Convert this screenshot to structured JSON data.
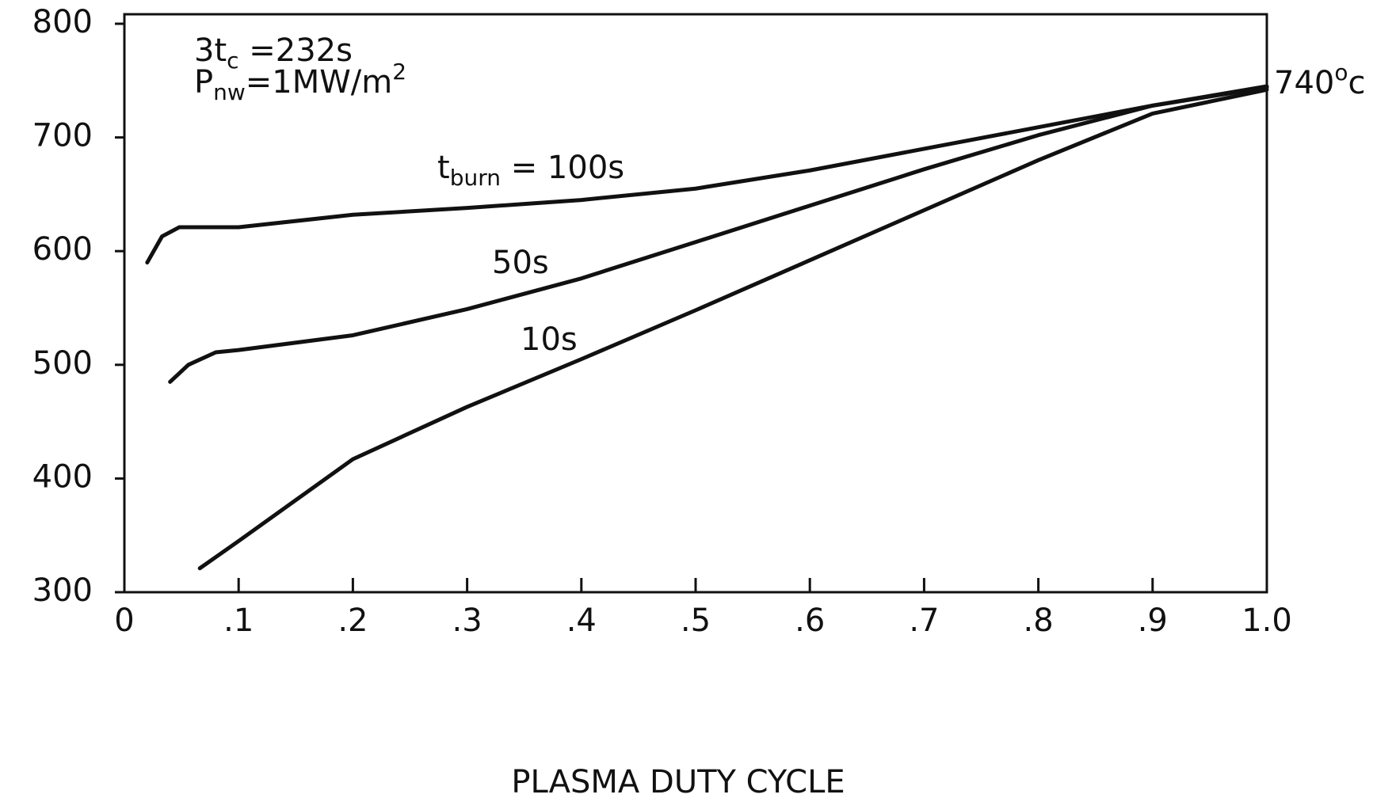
{
  "chart_data": {
    "type": "line",
    "xlabel": "PLASMA DUTY CYCLE",
    "xlim": [
      0,
      1.0
    ],
    "xticks": [
      0,
      {
        "value": 0.1,
        "label": ".1"
      },
      {
        "value": 0.2,
        "label": ".2"
      },
      {
        "value": 0.3,
        "label": ".3"
      },
      {
        "value": 0.4,
        "label": ".4"
      },
      {
        "value": 0.5,
        "label": ".5"
      },
      {
        "value": 0.6,
        "label": ".6"
      },
      {
        "value": 0.7,
        "label": ".7"
      },
      {
        "value": 0.8,
        "label": ".8"
      },
      {
        "value": 0.9,
        "label": ".9"
      },
      {
        "value": 1.0,
        "label": "1.0"
      }
    ],
    "ylim": [
      300,
      800
    ],
    "yticks": [
      300,
      400,
      500,
      600,
      700,
      800
    ],
    "annotations": [
      {
        "parts": [
          {
            "t": "3t"
          },
          {
            "sub": "c"
          },
          {
            "t": " =232s"
          }
        ]
      },
      {
        "parts": [
          {
            "t": "P"
          },
          {
            "sub": "nw"
          },
          {
            "t": "=1MW/m"
          },
          {
            "sup": "2"
          }
        ]
      },
      {
        "parts": [
          {
            "t": "740"
          },
          {
            "sup": "o"
          },
          {
            "t": "c"
          }
        ]
      }
    ],
    "series": [
      {
        "label": [
          {
            "t": "t"
          },
          {
            "sub": "burn"
          },
          {
            "t": " = 100s"
          }
        ],
        "color": "#111111",
        "x": [
          0.02,
          0.033,
          0.048,
          0.1,
          0.2,
          0.3,
          0.4,
          0.5,
          0.6,
          0.7,
          0.8,
          0.9,
          1.0
        ],
        "values": [
          590,
          613,
          621,
          621,
          632,
          638,
          645,
          655,
          671,
          690,
          709,
          728,
          745
        ]
      },
      {
        "label": [
          {
            "t": "50s"
          }
        ],
        "color": "#111111",
        "x": [
          0.04,
          0.056,
          0.08,
          0.1,
          0.2,
          0.3,
          0.4,
          0.5,
          0.6,
          0.7,
          0.8,
          0.9,
          1.0
        ],
        "values": [
          485,
          500,
          511,
          513,
          526,
          549,
          576,
          608,
          640,
          672,
          702,
          728,
          744
        ]
      },
      {
        "label": [
          {
            "t": "10s"
          }
        ],
        "color": "#111111",
        "x": [
          0.066,
          0.1,
          0.2,
          0.3,
          0.4,
          0.5,
          0.6,
          0.7,
          0.8,
          0.9,
          1.0
        ],
        "values": [
          321,
          345,
          417,
          463,
          505,
          548,
          592,
          636,
          680,
          721,
          742
        ]
      }
    ]
  }
}
